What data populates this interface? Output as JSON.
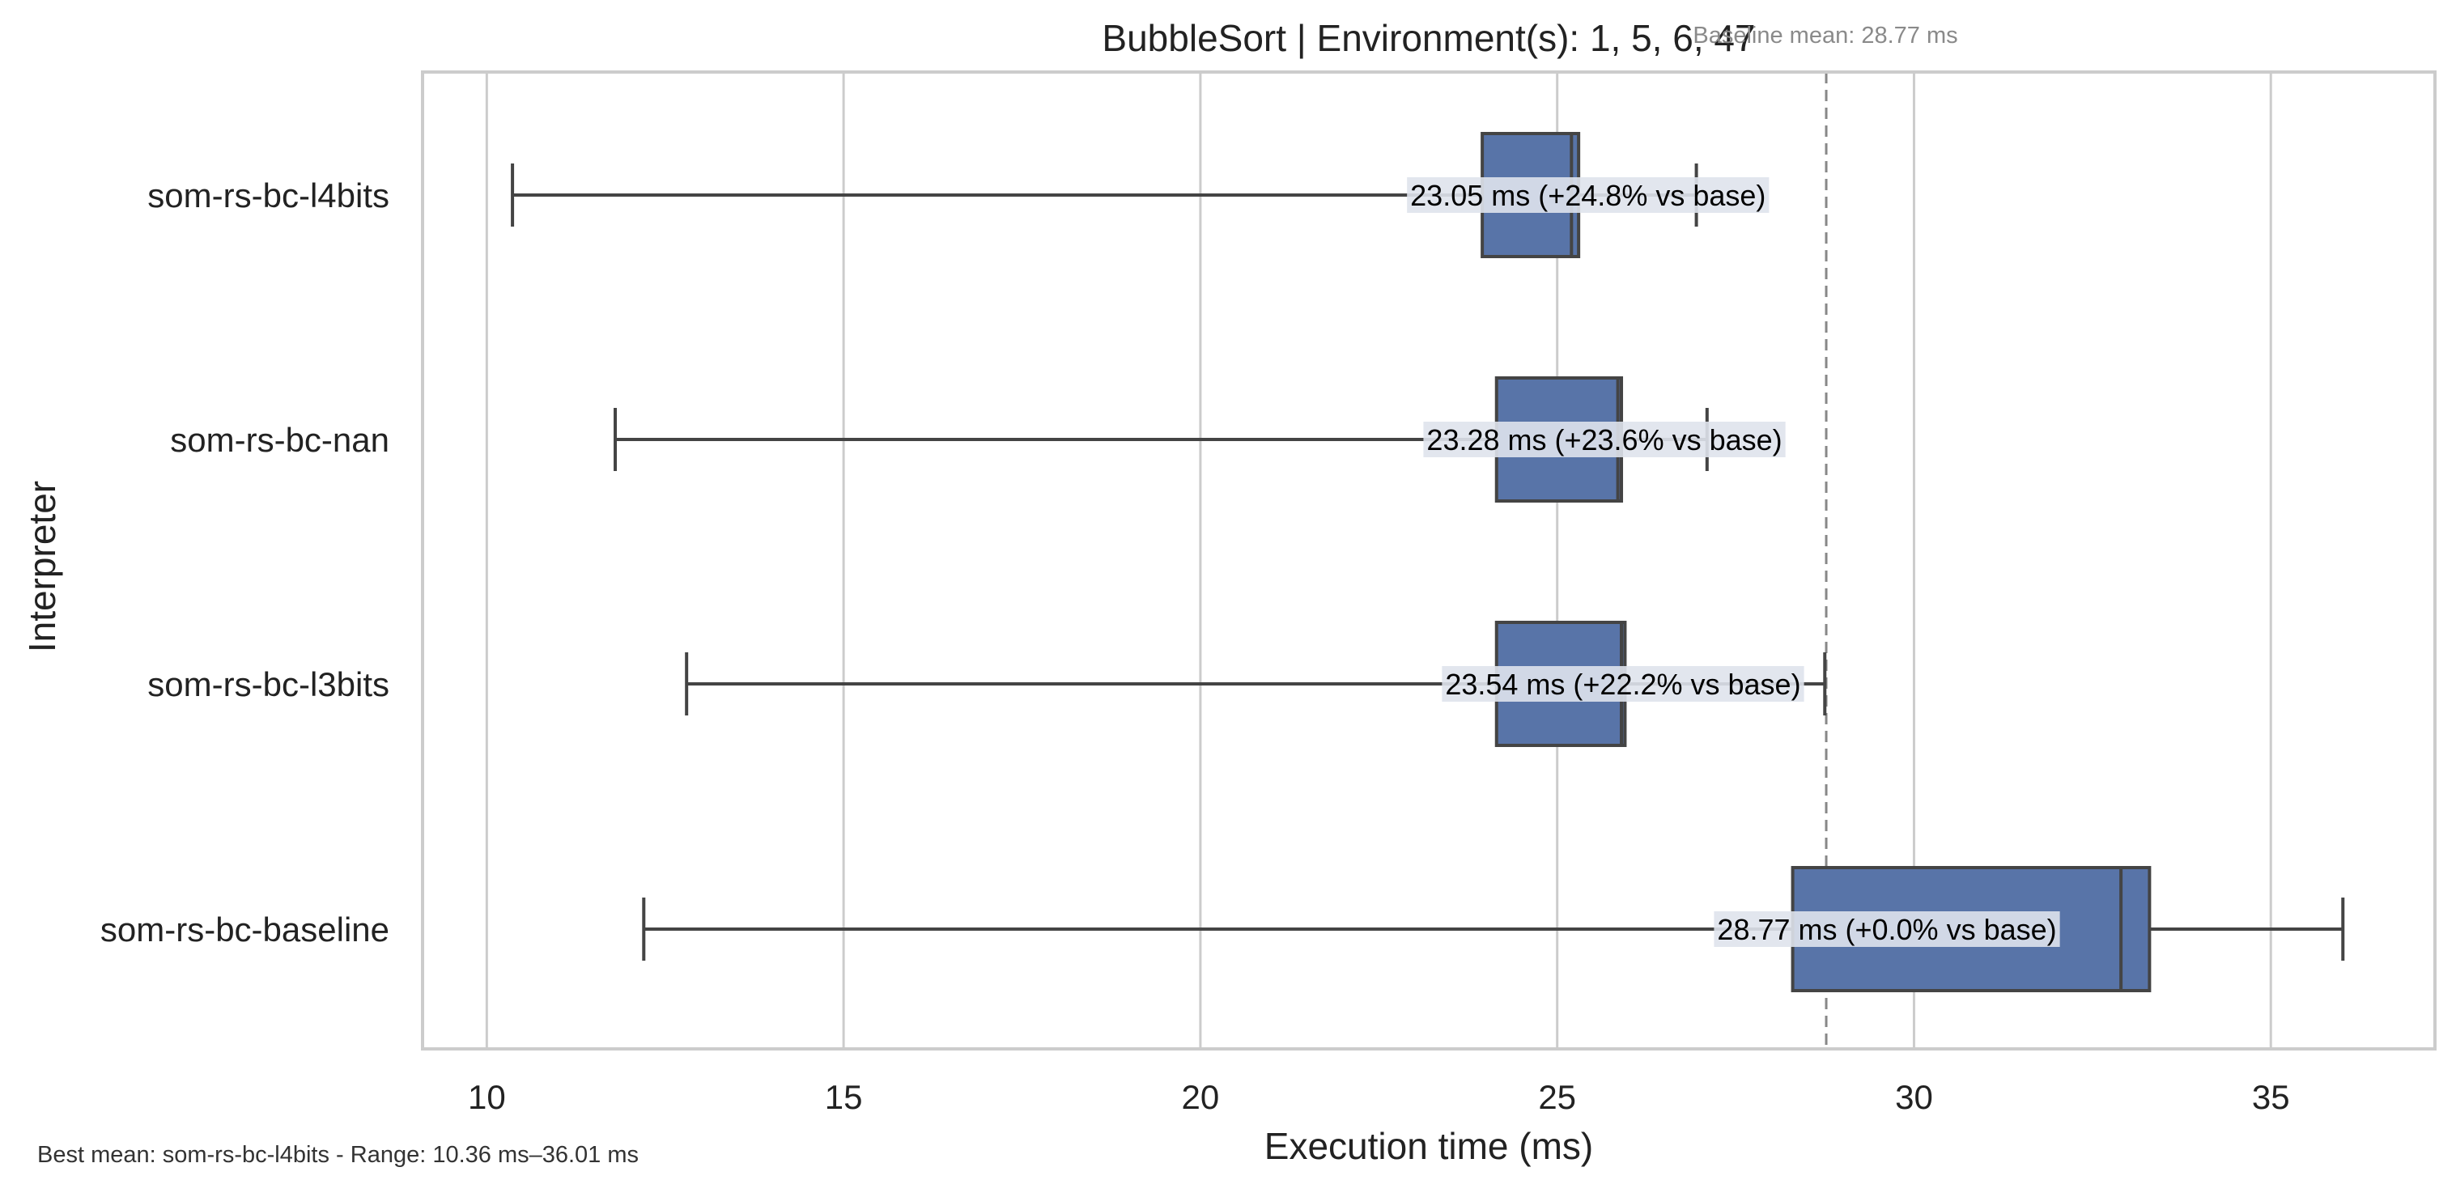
{
  "chart_data": {
    "type": "box",
    "title": "BubbleSort | Environment(s): 1, 5, 6, 47",
    "xlabel": "Execution time (ms)",
    "ylabel": "Interpreter",
    "xlim": [
      9.1,
      37.3
    ],
    "xticks": [
      10,
      15,
      20,
      25,
      30,
      35
    ],
    "orientation": "horizontal",
    "grid": "vertical",
    "categories": [
      "som-rs-bc-l4bits",
      "som-rs-bc-nan",
      "som-rs-bc-l3bits",
      "som-rs-bc-baseline"
    ],
    "boxes": [
      {
        "label": "som-rs-bc-l4bits",
        "whisker_low": 10.36,
        "q1": 23.95,
        "median": 25.2,
        "q3": 25.3,
        "whisker_high": 26.95,
        "annotation": "23.05 ms  (+24.8% vs base)"
      },
      {
        "label": "som-rs-bc-nan",
        "whisker_low": 11.8,
        "q1": 24.15,
        "median": 25.85,
        "q3": 25.9,
        "whisker_high": 27.1,
        "annotation": "23.28 ms  (+23.6% vs base)"
      },
      {
        "label": "som-rs-bc-l3bits",
        "whisker_low": 12.8,
        "q1": 24.15,
        "median": 25.9,
        "q3": 25.95,
        "whisker_high": 28.75,
        "annotation": "23.54 ms  (+22.2% vs base)"
      },
      {
        "label": "som-rs-bc-baseline",
        "whisker_low": 12.2,
        "q1": 28.3,
        "median": 32.9,
        "q3": 33.3,
        "whisker_high": 36.01,
        "annotation": "28.77 ms  (+0.0% vs base)"
      }
    ],
    "reference_line": {
      "value": 28.77,
      "label": "Baseline mean: 28.77 ms"
    },
    "footnote": "Best mean: som-rs-bc-l4bits - Range: 10.36 ms–36.01 ms",
    "colors": {
      "box_fill": "#5874a8",
      "box_edge": "#444444",
      "grid": "#cccccc",
      "frame": "#cccccc",
      "ref_line": "#888888",
      "label_bg": "#dfe3ec"
    }
  }
}
